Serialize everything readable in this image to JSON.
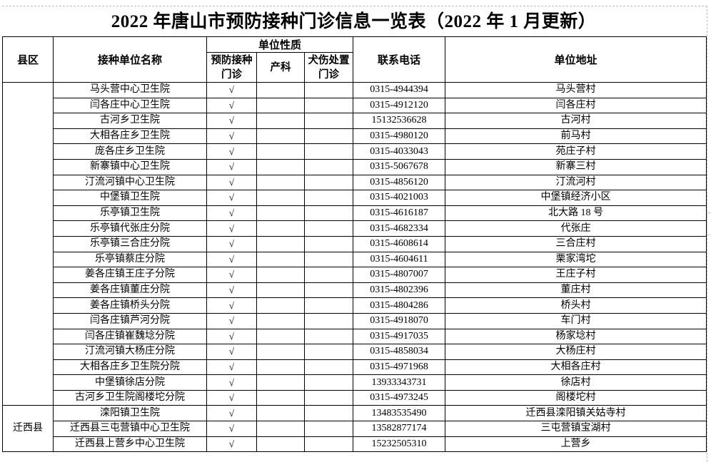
{
  "title": "2022 年唐山市预防接种门诊信息一览表（2022 年 1 月更新）",
  "headers": {
    "district": "县区",
    "unit_name": "接种单位名称",
    "unit_type": "单位性质",
    "type_prevent": "预防接种门诊",
    "type_obstetrics": "产科",
    "type_rabies": "犬伤处置门诊",
    "phone": "联系电话",
    "address": "单位地址"
  },
  "groups": [
    {
      "district": "",
      "rows": [
        {
          "name": "马头营中心卫生院",
          "prevent": "√",
          "obstetrics": "",
          "rabies": "",
          "phone": "0315-4944394",
          "address": "马头营村"
        },
        {
          "name": "闫各庄中心卫生院",
          "prevent": "√",
          "obstetrics": "",
          "rabies": "",
          "phone": "0315-4912120",
          "address": "闫各庄村"
        },
        {
          "name": "古河乡卫生院",
          "prevent": "√",
          "obstetrics": "",
          "rabies": "",
          "phone": "15132536628",
          "address": "古河村"
        },
        {
          "name": "大相各庄乡卫生院",
          "prevent": "√",
          "obstetrics": "",
          "rabies": "",
          "phone": "0315-4980120",
          "address": "前马村"
        },
        {
          "name": "庞各庄乡卫生院",
          "prevent": "√",
          "obstetrics": "",
          "rabies": "",
          "phone": "0315-4033043",
          "address": "苑庄子村"
        },
        {
          "name": "新寨镇中心卫生院",
          "prevent": "√",
          "obstetrics": "",
          "rabies": "",
          "phone": "0315-5067678",
          "address": "新寨三村"
        },
        {
          "name": "汀流河镇中心卫生院",
          "prevent": "√",
          "obstetrics": "",
          "rabies": "",
          "phone": "0315-4856120",
          "address": "汀流河村"
        },
        {
          "name": "中堡镇卫生院",
          "prevent": "√",
          "obstetrics": "",
          "rabies": "",
          "phone": "0315-4021003",
          "address": "中堡镇经济小区"
        },
        {
          "name": "乐亭镇卫生院",
          "prevent": "√",
          "obstetrics": "",
          "rabies": "",
          "phone": "0315-4616187",
          "address": "北大路 18 号"
        },
        {
          "name": "乐亭镇代张庄分院",
          "prevent": "√",
          "obstetrics": "",
          "rabies": "",
          "phone": "0315-4682334",
          "address": "代张庄"
        },
        {
          "name": "乐亭镇三合庄分院",
          "prevent": "√",
          "obstetrics": "",
          "rabies": "",
          "phone": "0315-4608614",
          "address": "三合庄村"
        },
        {
          "name": "乐亭镇蔡庄分院",
          "prevent": "√",
          "obstetrics": "",
          "rabies": "",
          "phone": "0315-4604611",
          "address": "栗家湾坨"
        },
        {
          "name": "姜各庄镇王庄子分院",
          "prevent": "√",
          "obstetrics": "",
          "rabies": "",
          "phone": "0315-4807007",
          "address": "王庄子村"
        },
        {
          "name": "姜各庄镇董庄分院",
          "prevent": "√",
          "obstetrics": "",
          "rabies": "",
          "phone": "0315-4802396",
          "address": "董庄村"
        },
        {
          "name": "姜各庄镇桥头分院",
          "prevent": "√",
          "obstetrics": "",
          "rabies": "",
          "phone": "0315-4804286",
          "address": "桥头村"
        },
        {
          "name": "闫各庄镇芦河分院",
          "prevent": "√",
          "obstetrics": "",
          "rabies": "",
          "phone": "0315-4918070",
          "address": "车门村"
        },
        {
          "name": "闫各庄镇崔魏埝分院",
          "prevent": "√",
          "obstetrics": "",
          "rabies": "",
          "phone": "0315-4917035",
          "address": "杨家埝村"
        },
        {
          "name": "汀流河镇大杨庄分院",
          "prevent": "√",
          "obstetrics": "",
          "rabies": "",
          "phone": "0315-4858034",
          "address": "大杨庄村"
        },
        {
          "name": "大相各庄乡卫生院分院",
          "prevent": "√",
          "obstetrics": "",
          "rabies": "",
          "phone": "0315-4971968",
          "address": "大相各庄村"
        },
        {
          "name": "中堡镇徐店分院",
          "prevent": "√",
          "obstetrics": "",
          "rabies": "",
          "phone": "13933343731",
          "address": "徐店村"
        },
        {
          "name": "古河乡卫生院阁楼坨分院",
          "prevent": "√",
          "obstetrics": "",
          "rabies": "",
          "phone": "0315-4973245",
          "address": "阁楼坨村"
        }
      ]
    },
    {
      "district": "迁西县",
      "rows": [
        {
          "name": "滦阳镇卫生院",
          "prevent": "√",
          "obstetrics": "",
          "rabies": "",
          "phone": "13483535490",
          "address": "迁西县滦阳镇关姑寺村"
        },
        {
          "name": "迁西县三屯营镇中心卫生院",
          "prevent": "√",
          "obstetrics": "",
          "rabies": "",
          "phone": "13582877174",
          "address": "三屯营镇宝湖村"
        },
        {
          "name": "迁西县上营乡中心卫生院",
          "prevent": "√",
          "obstetrics": "",
          "rabies": "",
          "phone": "15232505310",
          "address": "上营乡"
        }
      ]
    }
  ]
}
